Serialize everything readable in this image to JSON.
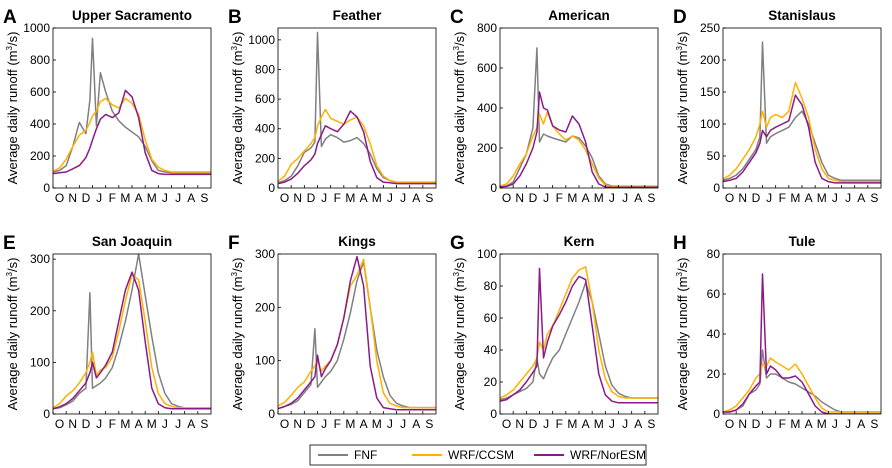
{
  "legend": [
    {
      "name": "FNF",
      "color": "#808080"
    },
    {
      "name": "WRF/CCSM",
      "color": "#FFB000"
    },
    {
      "name": "WRF/NorESM",
      "color": "#8B1A89"
    }
  ],
  "axis_units": {
    "ylabel_prefix": "Average daily runoff (m",
    "ylabel_sup": "3",
    "ylabel_suffix": "/s)",
    "x_ticks": [
      "O",
      "N",
      "D",
      "J",
      "F",
      "M",
      "A",
      "M",
      "J",
      "J",
      "A",
      "S"
    ]
  },
  "chart_data": [
    {
      "letter": "A",
      "type": "line",
      "title": "Upper Sacramento",
      "xlabel": "",
      "ylabel": "Average daily runoff (m³/s)",
      "xlim": [
        0,
        12
      ],
      "ylim": [
        0,
        1000
      ],
      "yticks": [
        0,
        200,
        400,
        600,
        800,
        1000
      ],
      "x": [
        0,
        0.5,
        1,
        1.5,
        2,
        2.5,
        2.8,
        3,
        3.3,
        3.6,
        4,
        4.5,
        5,
        5.5,
        6,
        6.5,
        7,
        7.5,
        8,
        8.5,
        9,
        9.5,
        10,
        11,
        12
      ],
      "series": [
        {
          "name": "FNF",
          "values": [
            100,
            110,
            140,
            260,
            410,
            340,
            550,
            935,
            390,
            720,
            600,
            480,
            420,
            380,
            350,
            320,
            260,
            170,
            110,
            100,
            95,
            95,
            95,
            95,
            95
          ]
        },
        {
          "name": "WRF/CCSM",
          "values": [
            105,
            125,
            180,
            260,
            330,
            360,
            410,
            450,
            480,
            540,
            560,
            520,
            500,
            560,
            530,
            460,
            300,
            180,
            130,
            110,
            100,
            100,
            100,
            100,
            100
          ]
        },
        {
          "name": "WRF/NorESM",
          "values": [
            90,
            95,
            100,
            120,
            140,
            190,
            250,
            300,
            370,
            430,
            460,
            440,
            470,
            610,
            570,
            440,
            220,
            110,
            90,
            85,
            85,
            85,
            85,
            85,
            85
          ]
        }
      ]
    },
    {
      "letter": "B",
      "type": "line",
      "title": "Feather",
      "xlabel": "",
      "ylabel": "Average daily runoff (m³/s)",
      "xlim": [
        0,
        12
      ],
      "ylim": [
        0,
        1080
      ],
      "yticks": [
        0,
        200,
        400,
        600,
        800,
        1000
      ],
      "x": [
        0,
        0.5,
        1,
        1.5,
        2,
        2.5,
        2.8,
        3,
        3.3,
        3.6,
        4,
        4.5,
        5,
        5.5,
        6,
        6.5,
        7,
        7.5,
        8,
        8.5,
        9,
        9.5,
        10,
        11,
        12
      ],
      "series": [
        {
          "name": "FNF",
          "values": [
            35,
            50,
            80,
            150,
            240,
            270,
            310,
            1050,
            280,
            330,
            360,
            340,
            310,
            320,
            340,
            300,
            230,
            130,
            70,
            50,
            40,
            35,
            35,
            35,
            35
          ]
        },
        {
          "name": "WRF/CCSM",
          "values": [
            45,
            80,
            160,
            200,
            250,
            300,
            340,
            420,
            480,
            530,
            470,
            450,
            430,
            460,
            480,
            420,
            300,
            150,
            80,
            50,
            40,
            40,
            40,
            40,
            40
          ]
        },
        {
          "name": "WRF/NorESM",
          "values": [
            30,
            40,
            60,
            100,
            150,
            190,
            230,
            300,
            360,
            420,
            400,
            380,
            430,
            520,
            480,
            380,
            180,
            70,
            40,
            35,
            30,
            30,
            30,
            30,
            30
          ]
        }
      ]
    },
    {
      "letter": "C",
      "type": "line",
      "title": "American",
      "xlabel": "",
      "ylabel": "Average daily runoff (m³/s)",
      "xlim": [
        0,
        12
      ],
      "ylim": [
        0,
        800
      ],
      "yticks": [
        0,
        200,
        400,
        600,
        800
      ],
      "x": [
        0,
        0.5,
        1,
        1.5,
        2,
        2.5,
        2.8,
        3,
        3.3,
        3.6,
        4,
        4.5,
        5,
        5.5,
        6,
        6.5,
        7,
        7.5,
        8,
        8.5,
        9,
        9.5,
        10,
        11,
        12
      ],
      "series": [
        {
          "name": "FNF",
          "values": [
            5,
            10,
            30,
            100,
            170,
            300,
            700,
            230,
            270,
            260,
            250,
            240,
            230,
            260,
            250,
            210,
            150,
            60,
            20,
            10,
            8,
            8,
            8,
            8,
            8
          ]
        },
        {
          "name": "WRF/CCSM",
          "values": [
            10,
            20,
            60,
            120,
            170,
            260,
            300,
            370,
            320,
            380,
            310,
            270,
            240,
            260,
            240,
            190,
            120,
            50,
            15,
            8,
            5,
            5,
            5,
            5,
            5
          ]
        },
        {
          "name": "WRF/NorESM",
          "values": [
            5,
            8,
            20,
            60,
            120,
            200,
            280,
            480,
            400,
            390,
            310,
            290,
            280,
            360,
            320,
            230,
            80,
            20,
            5,
            3,
            3,
            3,
            3,
            3,
            3
          ]
        }
      ]
    },
    {
      "letter": "D",
      "type": "line",
      "title": "Stanislaus",
      "xlabel": "",
      "ylabel": "Average daily runoff (m³/s)",
      "xlim": [
        0,
        12
      ],
      "ylim": [
        0,
        250
      ],
      "yticks": [
        0,
        50,
        100,
        150,
        200,
        250
      ],
      "x": [
        0,
        0.5,
        1,
        1.5,
        2,
        2.5,
        2.8,
        3,
        3.3,
        3.6,
        4,
        4.5,
        5,
        5.5,
        6,
        6.5,
        7,
        7.5,
        8,
        8.5,
        9,
        9.5,
        10,
        11,
        12
      ],
      "series": [
        {
          "name": "FNF",
          "values": [
            12,
            15,
            20,
            30,
            45,
            60,
            80,
            228,
            70,
            80,
            85,
            90,
            95,
            110,
            120,
            100,
            70,
            40,
            20,
            15,
            12,
            12,
            12,
            12,
            12
          ]
        },
        {
          "name": "WRF/CCSM",
          "values": [
            14,
            20,
            30,
            45,
            60,
            80,
            100,
            120,
            95,
            110,
            115,
            110,
            120,
            165,
            140,
            110,
            60,
            30,
            15,
            12,
            10,
            10,
            10,
            10,
            10
          ]
        },
        {
          "name": "WRF/NorESM",
          "values": [
            10,
            12,
            15,
            25,
            40,
            55,
            70,
            90,
            80,
            90,
            95,
            100,
            105,
            145,
            130,
            95,
            40,
            15,
            10,
            8,
            8,
            8,
            8,
            8,
            8
          ]
        }
      ]
    },
    {
      "letter": "E",
      "type": "line",
      "title": "San Joaquin",
      "xlabel": "",
      "ylabel": "Average daily runoff (m³/s)",
      "xlim": [
        0,
        12
      ],
      "ylim": [
        0,
        310
      ],
      "yticks": [
        0,
        100,
        200,
        300
      ],
      "x": [
        0,
        0.5,
        1,
        1.5,
        2,
        2.5,
        2.8,
        3,
        3.3,
        3.6,
        4,
        4.5,
        5,
        5.5,
        6,
        6.5,
        7,
        7.5,
        8,
        8.5,
        9,
        9.5,
        10,
        11,
        12
      ],
      "series": [
        {
          "name": "FNF",
          "values": [
            10,
            12,
            18,
            25,
            40,
            50,
            235,
            50,
            55,
            60,
            70,
            90,
            130,
            180,
            240,
            310,
            230,
            150,
            80,
            40,
            20,
            15,
            12,
            12,
            12
          ]
        },
        {
          "name": "WRF/CCSM",
          "values": [
            12,
            20,
            35,
            45,
            60,
            80,
            100,
            120,
            75,
            85,
            90,
            110,
            160,
            220,
            270,
            260,
            180,
            90,
            40,
            20,
            15,
            12,
            12,
            12,
            12
          ]
        },
        {
          "name": "WRF/NorESM",
          "values": [
            10,
            14,
            20,
            30,
            45,
            60,
            80,
            100,
            70,
            80,
            95,
            120,
            180,
            240,
            275,
            240,
            140,
            50,
            20,
            12,
            10,
            10,
            10,
            10,
            10
          ]
        }
      ]
    },
    {
      "letter": "F",
      "type": "line",
      "title": "Kings",
      "xlabel": "",
      "ylabel": "Average daily runoff (m³/s)",
      "xlim": [
        0,
        12
      ],
      "ylim": [
        0,
        300
      ],
      "yticks": [
        0,
        100,
        200,
        300
      ],
      "x": [
        0,
        0.5,
        1,
        1.5,
        2,
        2.5,
        2.8,
        3,
        3.3,
        3.6,
        4,
        4.5,
        5,
        5.5,
        6,
        6.5,
        7,
        7.5,
        8,
        8.5,
        9,
        9.5,
        10,
        11,
        12
      ],
      "series": [
        {
          "name": "FNF",
          "values": [
            10,
            14,
            18,
            25,
            40,
            55,
            160,
            50,
            60,
            70,
            80,
            100,
            140,
            190,
            250,
            285,
            200,
            120,
            70,
            35,
            20,
            15,
            12,
            12,
            12
          ]
        },
        {
          "name": "WRF/CCSM",
          "values": [
            15,
            22,
            35,
            50,
            60,
            80,
            90,
            100,
            80,
            90,
            100,
            130,
            180,
            240,
            260,
            290,
            200,
            100,
            40,
            20,
            15,
            12,
            12,
            12,
            12
          ]
        },
        {
          "name": "WRF/NorESM",
          "values": [
            10,
            14,
            20,
            30,
            45,
            60,
            70,
            110,
            70,
            85,
            100,
            130,
            180,
            250,
            295,
            240,
            90,
            30,
            12,
            10,
            8,
            8,
            8,
            8,
            8
          ]
        }
      ]
    },
    {
      "letter": "G",
      "type": "line",
      "title": "Kern",
      "xlabel": "",
      "ylabel": "Average daily runoff (m³/s)",
      "xlim": [
        0,
        12
      ],
      "ylim": [
        0,
        100
      ],
      "yticks": [
        0,
        20,
        40,
        60,
        80,
        100
      ],
      "x": [
        0,
        0.5,
        1,
        1.5,
        2,
        2.5,
        2.8,
        3,
        3.3,
        3.6,
        4,
        4.5,
        5,
        5.5,
        6,
        6.5,
        7,
        7.5,
        8,
        8.5,
        9,
        9.5,
        10,
        11,
        12
      ],
      "series": [
        {
          "name": "FNF",
          "values": [
            9,
            10,
            12,
            14,
            16,
            20,
            35,
            25,
            22,
            28,
            35,
            40,
            50,
            60,
            70,
            82,
            70,
            50,
            30,
            18,
            13,
            11,
            10,
            10,
            10
          ]
        },
        {
          "name": "WRF/CCSM",
          "values": [
            10,
            12,
            15,
            20,
            25,
            30,
            35,
            45,
            40,
            50,
            55,
            65,
            75,
            85,
            90,
            92,
            70,
            40,
            22,
            14,
            11,
            10,
            10,
            10,
            10
          ]
        },
        {
          "name": "WRF/NorESM",
          "values": [
            8,
            9,
            12,
            15,
            20,
            26,
            30,
            91,
            35,
            45,
            55,
            62,
            70,
            80,
            86,
            84,
            55,
            25,
            12,
            8,
            7,
            7,
            7,
            7,
            7
          ]
        }
      ]
    },
    {
      "letter": "H",
      "type": "line",
      "title": "Tule",
      "xlabel": "",
      "ylabel": "Average daily runoff (m³/s)",
      "xlim": [
        0,
        12
      ],
      "ylim": [
        0,
        80
      ],
      "yticks": [
        0,
        20,
        40,
        60,
        80
      ],
      "x": [
        0,
        0.5,
        1,
        1.5,
        2,
        2.5,
        2.8,
        3,
        3.3,
        3.6,
        4,
        4.5,
        5,
        5.5,
        6,
        6.5,
        7,
        7.5,
        8,
        8.5,
        9,
        9.5,
        10,
        11,
        12
      ],
      "series": [
        {
          "name": "FNF",
          "values": [
            1,
            1,
            2,
            4,
            10,
            12,
            15,
            32,
            18,
            20,
            20,
            18,
            16,
            15,
            13,
            11,
            9,
            6,
            4,
            2,
            1,
            1,
            1,
            1,
            1
          ]
        },
        {
          "name": "WRF/CCSM",
          "values": [
            1,
            2,
            4,
            8,
            12,
            18,
            20,
            25,
            24,
            28,
            26,
            24,
            22,
            25,
            20,
            14,
            8,
            3,
            1,
            1,
            1,
            1,
            1,
            1,
            1
          ]
        },
        {
          "name": "WRF/NorESM",
          "values": [
            1,
            1,
            2,
            5,
            10,
            14,
            16,
            70,
            20,
            24,
            22,
            18,
            18,
            19,
            16,
            10,
            4,
            1,
            0,
            0,
            0,
            0,
            0,
            0,
            0
          ]
        }
      ]
    }
  ]
}
